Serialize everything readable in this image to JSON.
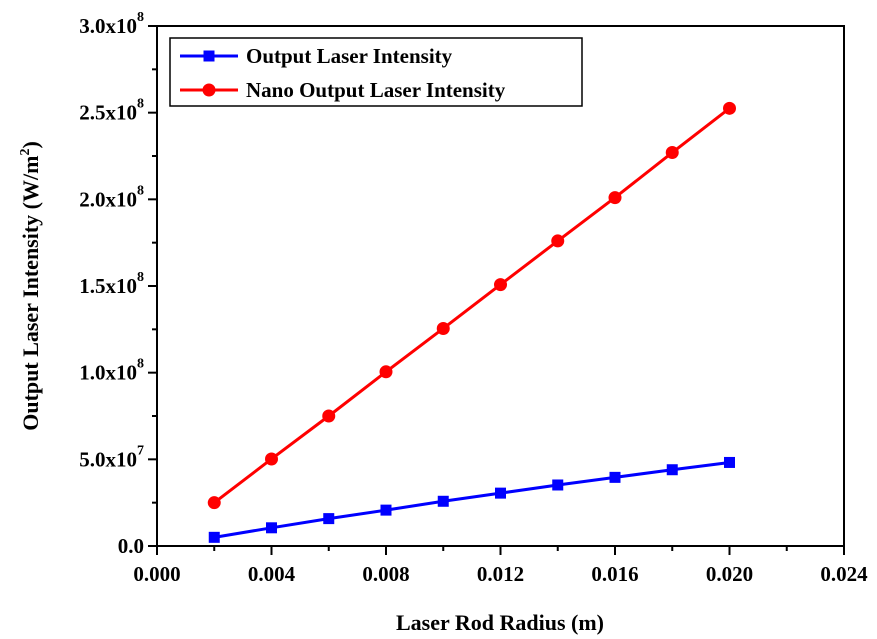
{
  "chart_data": {
    "type": "line",
    "xlabel": "Laser Rod Radius (m)",
    "ylabel": "Output Laser Intensity (W/m",
    "ylabel_sup": "2",
    "ylabel_end": ")",
    "xlim": [
      0.0,
      0.024
    ],
    "ylim": [
      0,
      300000000
    ],
    "x_ticks": [
      0.0,
      0.004,
      0.008,
      0.012,
      0.016,
      0.02,
      0.024
    ],
    "x_tick_labels": [
      "0.000",
      "0.004",
      "0.008",
      "0.012",
      "0.016",
      "0.020",
      "0.024"
    ],
    "y_ticks": [
      0,
      50000000,
      100000000,
      150000000,
      200000000,
      250000000,
      300000000
    ],
    "y_tick_labels": [
      {
        "mant": "0.0",
        "exp": ""
      },
      {
        "mant": "5.0x10",
        "exp": "7"
      },
      {
        "mant": "1.0x10",
        "exp": "8"
      },
      {
        "mant": "1.5x10",
        "exp": "8"
      },
      {
        "mant": "2.0x10",
        "exp": "8"
      },
      {
        "mant": "2.5x10",
        "exp": "8"
      },
      {
        "mant": "3.0x10",
        "exp": "8"
      }
    ],
    "x": [
      0.002,
      0.004,
      0.006,
      0.008,
      0.01,
      0.012,
      0.014,
      0.016,
      0.018,
      0.02
    ],
    "series": [
      {
        "name": "Output Laser Intensity",
        "color": "#0000ff",
        "marker": "square",
        "values": [
          5000000,
          10500000,
          15800000,
          20700000,
          25800000,
          30500000,
          35200000,
          39600000,
          44000000,
          48200000
        ]
      },
      {
        "name": "Nano Output Laser Intensity",
        "color": "#ff0000",
        "marker": "circle",
        "values": [
          25000000,
          50200000,
          75000000,
          100500000,
          125500000,
          150800000,
          176000000,
          201000000,
          227000000,
          252500000
        ]
      }
    ],
    "legend": "top-left",
    "grid": false
  }
}
